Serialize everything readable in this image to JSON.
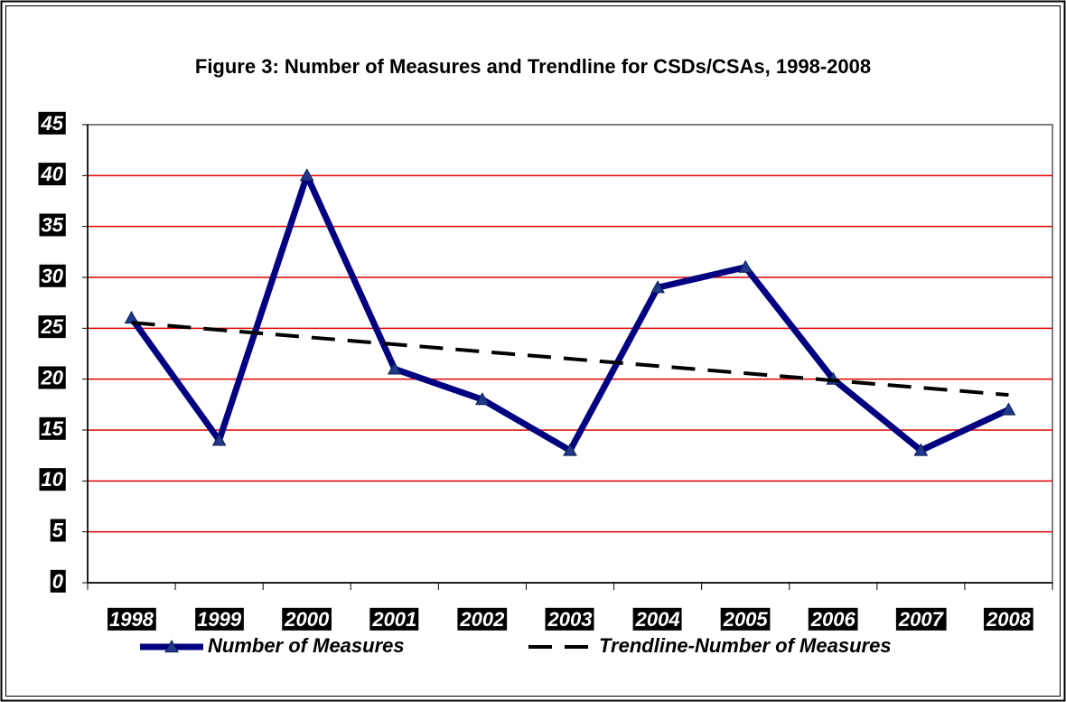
{
  "chart_data": {
    "type": "line",
    "title": "Figure 3:  Number of Measures and Trendline for CSDs/CSAs, 1998-2008",
    "categories": [
      "1998",
      "1999",
      "2000",
      "2001",
      "2002",
      "2003",
      "2004",
      "2005",
      "2006",
      "2007",
      "2008"
    ],
    "series": [
      {
        "name": "Number of Measures",
        "color": "#000080",
        "values": [
          26,
          14,
          40,
          21,
          18,
          13,
          29,
          31,
          20,
          13,
          17
        ]
      },
      {
        "name": "Trendline-Number of Measures",
        "color": "#000000",
        "values": [
          25.55,
          24.84,
          24.13,
          23.42,
          22.71,
          22.0,
          21.29,
          20.58,
          19.87,
          19.16,
          18.45
        ]
      }
    ],
    "ylim": [
      0,
      45
    ],
    "yticks": [
      0,
      5,
      10,
      15,
      20,
      25,
      30,
      35,
      40,
      45
    ],
    "grid": true,
    "grid_color": "#e00000",
    "legend": "bottom"
  }
}
